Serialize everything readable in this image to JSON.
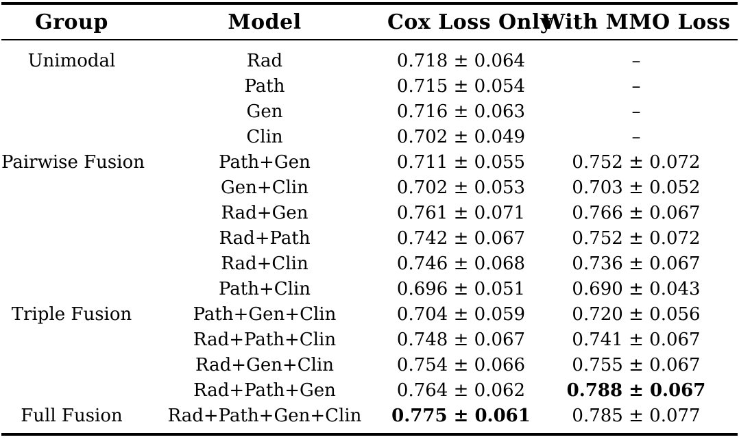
{
  "colors": {
    "background": "#ffffff",
    "text": "#000000",
    "rule": "#000000"
  },
  "table": {
    "columns": {
      "group": "Group",
      "model": "Model",
      "cox": "Cox Loss Only",
      "mmo": "With MMO Loss"
    },
    "rows": [
      {
        "group": "Unimodal",
        "model": "Rad",
        "cox": "0.718 ± 0.064",
        "cox_bold": false,
        "mmo": "–",
        "mmo_bold": false
      },
      {
        "group": "",
        "model": "Path",
        "cox": "0.715 ± 0.054",
        "cox_bold": false,
        "mmo": "–",
        "mmo_bold": false
      },
      {
        "group": "",
        "model": "Gen",
        "cox": "0.716 ± 0.063",
        "cox_bold": false,
        "mmo": "–",
        "mmo_bold": false
      },
      {
        "group": "",
        "model": "Clin",
        "cox": "0.702 ± 0.049",
        "cox_bold": false,
        "mmo": "–",
        "mmo_bold": false
      },
      {
        "group": "Pairwise Fusion",
        "model": "Path+Gen",
        "cox": "0.711 ± 0.055",
        "cox_bold": false,
        "mmo": "0.752 ± 0.072",
        "mmo_bold": false
      },
      {
        "group": "",
        "model": "Gen+Clin",
        "cox": "0.702 ± 0.053",
        "cox_bold": false,
        "mmo": "0.703 ± 0.052",
        "mmo_bold": false
      },
      {
        "group": "",
        "model": "Rad+Gen",
        "cox": "0.761 ± 0.071",
        "cox_bold": false,
        "mmo": "0.766 ± 0.067",
        "mmo_bold": false
      },
      {
        "group": "",
        "model": "Rad+Path",
        "cox": "0.742 ± 0.067",
        "cox_bold": false,
        "mmo": "0.752 ± 0.072",
        "mmo_bold": false
      },
      {
        "group": "",
        "model": "Rad+Clin",
        "cox": "0.746 ± 0.068",
        "cox_bold": false,
        "mmo": "0.736 ± 0.067",
        "mmo_bold": false
      },
      {
        "group": "",
        "model": "Path+Clin",
        "cox": "0.696 ± 0.051",
        "cox_bold": false,
        "mmo": "0.690 ± 0.043",
        "mmo_bold": false
      },
      {
        "group": "Triple Fusion",
        "model": "Path+Gen+Clin",
        "cox": "0.704 ± 0.059",
        "cox_bold": false,
        "mmo": "0.720 ± 0.056",
        "mmo_bold": false
      },
      {
        "group": "",
        "model": "Rad+Path+Clin",
        "cox": "0.748 ± 0.067",
        "cox_bold": false,
        "mmo": "0.741 ± 0.067",
        "mmo_bold": false
      },
      {
        "group": "",
        "model": "Rad+Gen+Clin",
        "cox": "0.754 ± 0.066",
        "cox_bold": false,
        "mmo": "0.755 ± 0.067",
        "mmo_bold": false
      },
      {
        "group": "",
        "model": "Rad+Path+Gen",
        "cox": "0.764 ± 0.062",
        "cox_bold": false,
        "mmo": "0.788 ± 0.067",
        "mmo_bold": true
      },
      {
        "group": "Full Fusion",
        "model": "Rad+Path+Gen+Clin",
        "cox": "0.775 ± 0.061",
        "cox_bold": true,
        "mmo": "0.785 ± 0.077",
        "mmo_bold": false
      }
    ]
  }
}
